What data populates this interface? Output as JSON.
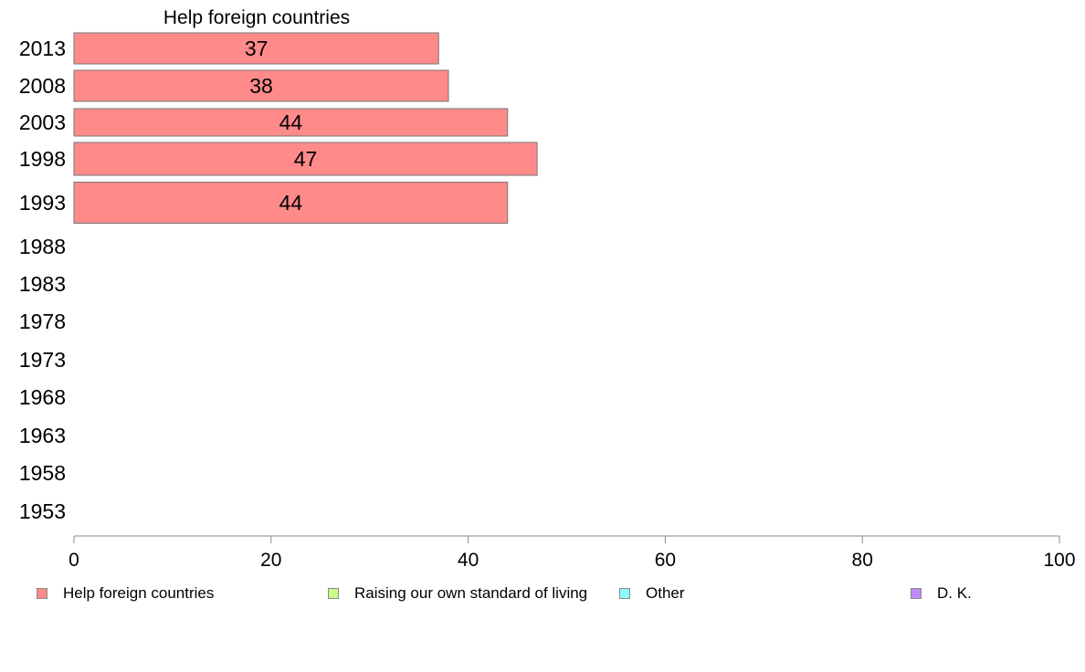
{
  "chart_data": {
    "type": "bar",
    "orientation": "horizontal",
    "title": "Help foreign countries",
    "categories": [
      "2013",
      "2008",
      "2003",
      "1998",
      "1993",
      "1988",
      "1983",
      "1978",
      "1973",
      "1968",
      "1963",
      "1958",
      "1953"
    ],
    "series": [
      {
        "name": "Help foreign countries",
        "color": "#ff8a8a",
        "values": [
          37,
          38,
          44,
          47,
          44,
          null,
          null,
          null,
          null,
          null,
          null,
          null,
          null
        ]
      }
    ],
    "data_labels": [
      "37",
      "38",
      "44",
      "47",
      "44"
    ],
    "xlim": [
      0,
      100
    ],
    "xticks": [
      "0",
      "20",
      "40",
      "60",
      "80",
      "100"
    ],
    "grid": false,
    "legend": [
      {
        "label": "Help foreign countries",
        "color": "#ff8a8a"
      },
      {
        "label": "Raising our own standard of living",
        "color": "#c8ff8a"
      },
      {
        "label": "Other",
        "color": "#8affff"
      },
      {
        "label": "D. K.",
        "color": "#c08aff"
      }
    ],
    "legend_position": "bottom"
  }
}
